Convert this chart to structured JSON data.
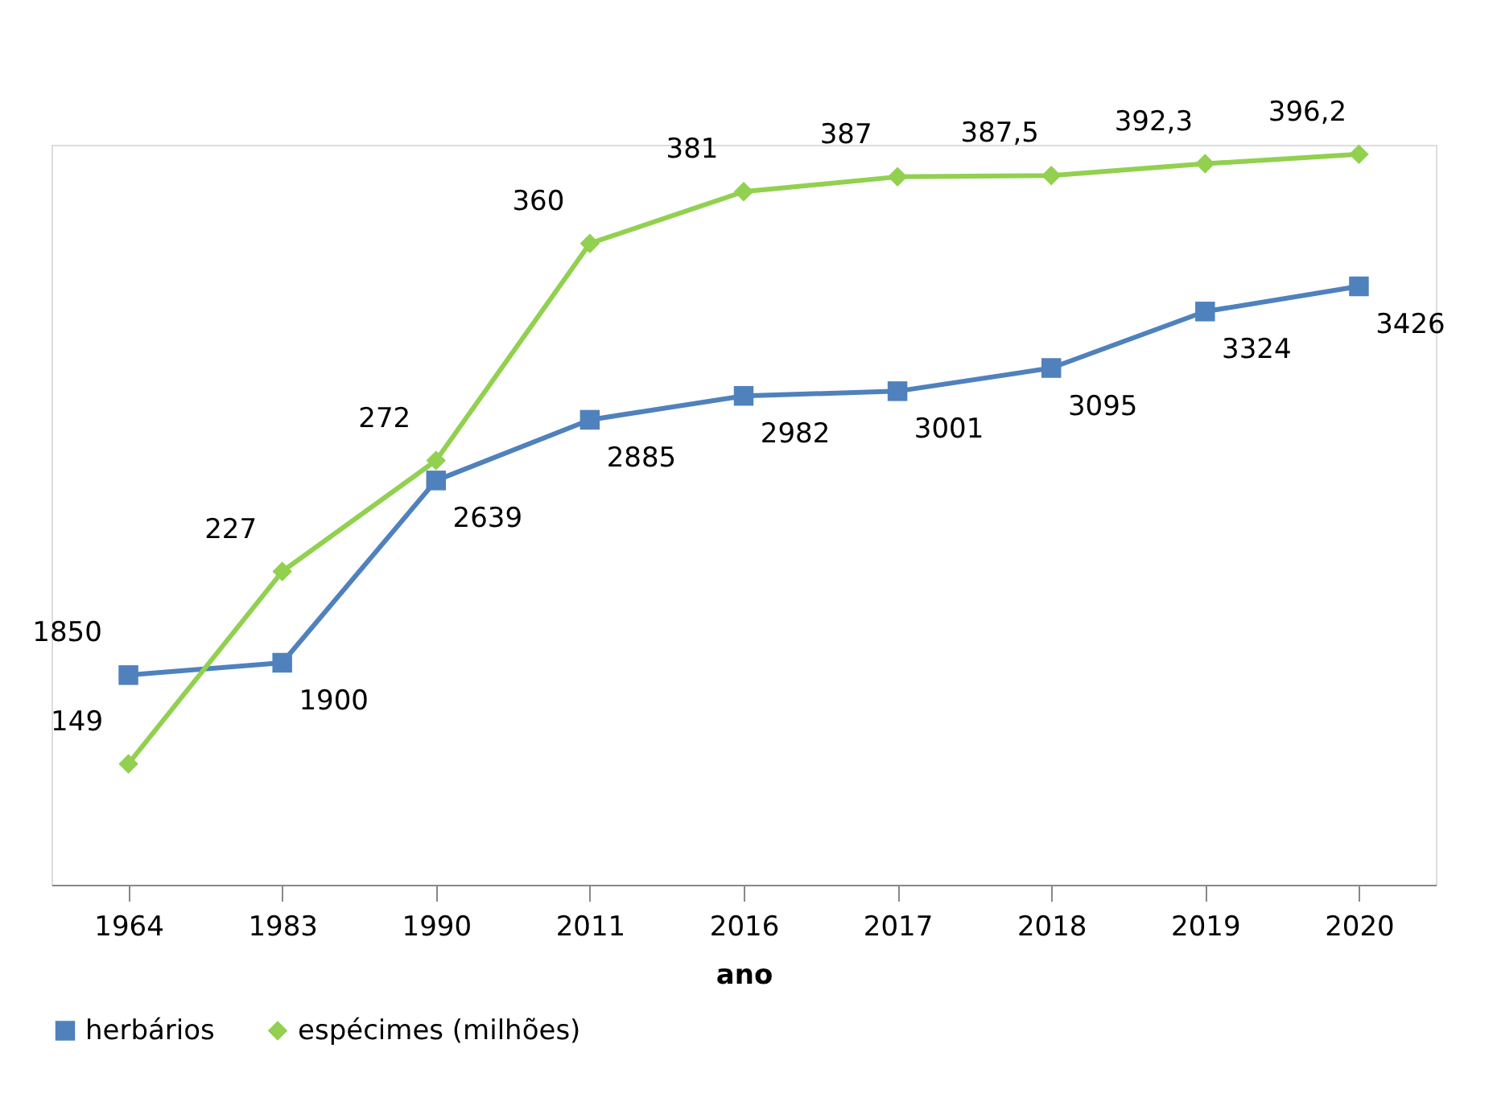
{
  "chart_data": {
    "type": "line",
    "xlabel": "ano",
    "categories": [
      "1964",
      "1983",
      "1990",
      "2011",
      "2016",
      "2017",
      "2018",
      "2019",
      "2020"
    ],
    "series": [
      {
        "name": "herbários",
        "color": "#4f81bd",
        "marker": "square",
        "values": [
          1850,
          1900,
          2639,
          2885,
          2982,
          3001,
          3095,
          3324,
          3426
        ],
        "value_labels": [
          "1850",
          "1900",
          "2639",
          "2885",
          "2982",
          "3001",
          "3095",
          "3324",
          "3426"
        ]
      },
      {
        "name": "espécimes (milhões)",
        "color": "#92d050",
        "marker": "diamond",
        "axis": "y2",
        "values": [
          149,
          227,
          272,
          360,
          381,
          387,
          387.5,
          392.3,
          396.2
        ],
        "value_labels": [
          "149",
          "227",
          "272",
          "360",
          "381",
          "387",
          "387,5",
          "392,3",
          "396,2"
        ]
      }
    ],
    "ylim": [
      1000,
      4000
    ],
    "y2lim": [
      100,
      400
    ],
    "tick_labels": "x",
    "grid": false,
    "legend": "bottom",
    "line_style": "solid"
  }
}
